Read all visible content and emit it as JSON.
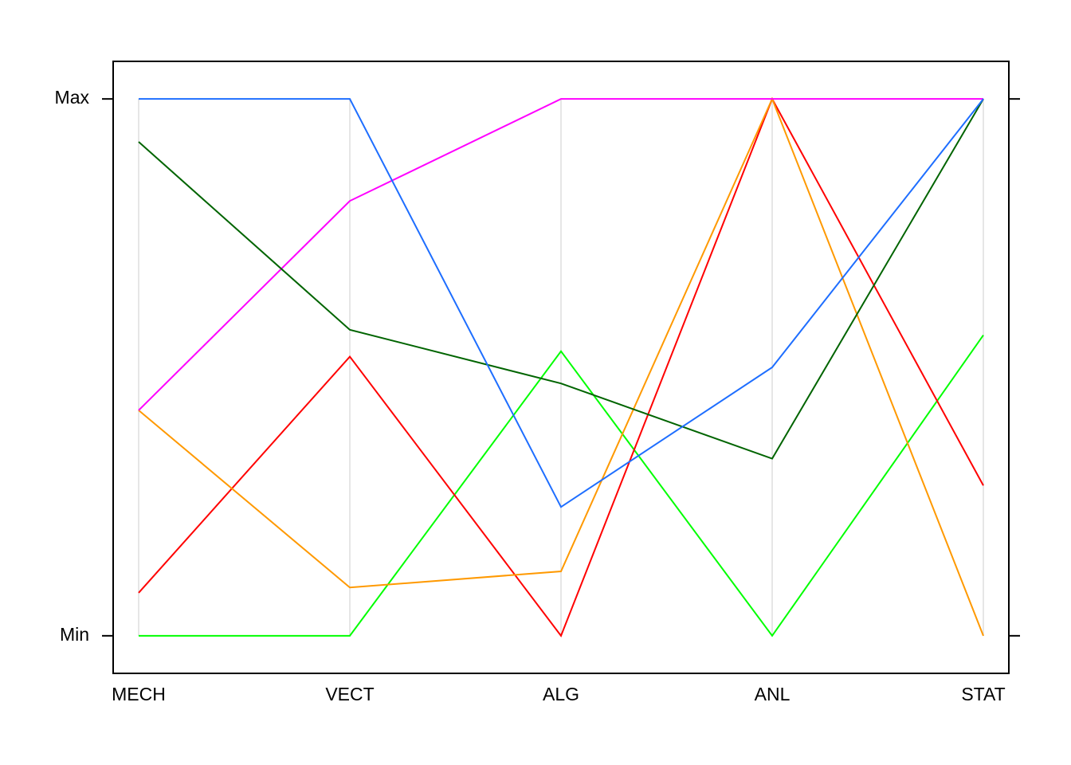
{
  "chart_data": {
    "type": "parallel",
    "categories": [
      "MECH",
      "VECT",
      "ALG",
      "ANL",
      "STAT"
    ],
    "ylim": [
      -0.07,
      1.07
    ],
    "yticks": [
      {
        "value": 0,
        "label": "Min"
      },
      {
        "value": 1,
        "label": "Max"
      }
    ],
    "grid": true,
    "series": [
      {
        "color": "#00ff00",
        "values": [
          0,
          0,
          0.53,
          0,
          0.56
        ]
      },
      {
        "color": "#ff0000",
        "values": [
          0.08,
          0.52,
          0,
          1,
          0.28
        ]
      },
      {
        "color": "#ff9900",
        "values": [
          0.42,
          0.09,
          0.12,
          1,
          0
        ]
      },
      {
        "color": "#ff00ff",
        "values": [
          0.42,
          0.81,
          1,
          1,
          1
        ]
      },
      {
        "color": "#006400",
        "values": [
          0.92,
          0.57,
          0.47,
          0.33,
          1
        ]
      },
      {
        "color": "#1e6eff",
        "values": [
          1,
          1,
          0.24,
          0.5,
          1
        ]
      }
    ]
  }
}
